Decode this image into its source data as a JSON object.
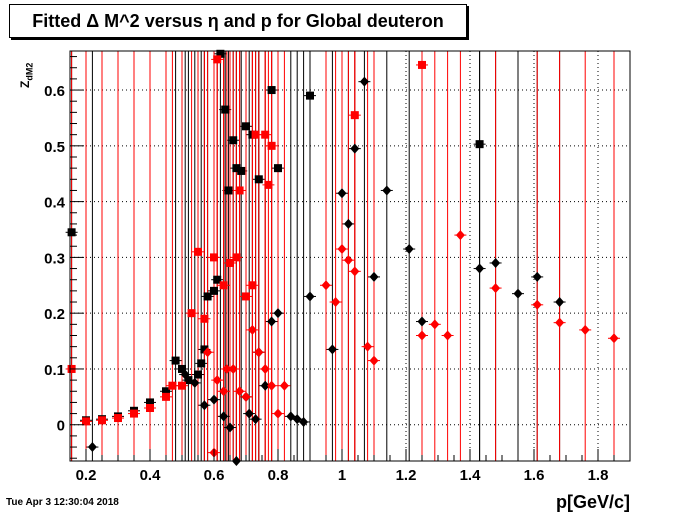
{
  "header": {
    "title": "Fitted Δ M^2 versus η and p for Global deuteron",
    "timestamp": "Tue Apr  3 12:30:04 2018"
  },
  "chart_data": {
    "type": "scatter",
    "title": "Fitted Δ M^2 versus η and p for Global deuteron",
    "xlabel": "p[GeV/c]",
    "ylabel_main": "Z",
    "ylabel_sub": "dM2",
    "xlim": [
      0.15,
      1.9
    ],
    "ylim": [
      -0.065,
      0.67
    ],
    "xticks": [
      0.2,
      0.4,
      0.6,
      0.8,
      1.0,
      1.2,
      1.4,
      1.6,
      1.8
    ],
    "xtick_labels": [
      "0.2",
      "0.4",
      "0.6",
      "0.8",
      "1",
      "1.2",
      "1.4",
      "1.6",
      "1.8"
    ],
    "yticks": [
      0,
      0.1,
      0.2,
      0.3,
      0.4,
      0.5,
      0.6
    ],
    "ytick_labels": [
      "0",
      "0.1",
      "0.2",
      "0.3",
      "0.4",
      "0.5",
      "0.6"
    ],
    "grid": true,
    "series": [
      {
        "color": "#000000",
        "marker": "square",
        "points": [
          [
            0.155,
            0.345
          ],
          [
            0.2,
            0.008
          ],
          [
            0.25,
            0.01
          ],
          [
            0.3,
            0.015
          ],
          [
            0.35,
            0.025
          ],
          [
            0.4,
            0.04
          ],
          [
            0.45,
            0.06
          ],
          [
            0.48,
            0.115
          ],
          [
            0.5,
            0.1
          ],
          [
            0.52,
            0.08
          ],
          [
            0.55,
            0.09
          ],
          [
            0.56,
            0.11
          ],
          [
            0.57,
            0.135
          ],
          [
            0.58,
            0.23
          ],
          [
            0.6,
            0.24
          ],
          [
            0.61,
            0.26
          ],
          [
            0.62,
            0.665
          ],
          [
            0.635,
            0.565
          ],
          [
            0.645,
            0.42
          ],
          [
            0.66,
            0.51
          ],
          [
            0.67,
            0.46
          ],
          [
            0.685,
            0.455
          ],
          [
            0.7,
            0.535
          ],
          [
            0.72,
            0.52
          ],
          [
            0.74,
            0.44
          ],
          [
            0.78,
            0.6
          ],
          [
            0.8,
            0.46
          ],
          [
            0.9,
            0.59
          ],
          [
            1.43,
            0.503
          ]
        ]
      },
      {
        "color": "#000000",
        "marker": "diamond",
        "points": [
          [
            0.22,
            -0.04
          ],
          [
            0.51,
            0.09
          ],
          [
            0.54,
            0.075
          ],
          [
            0.57,
            0.035
          ],
          [
            0.6,
            0.045
          ],
          [
            0.63,
            0.015
          ],
          [
            0.65,
            -0.005
          ],
          [
            0.67,
            -0.065
          ],
          [
            0.7,
            0.05
          ],
          [
            0.71,
            0.02
          ],
          [
            0.73,
            0.01
          ],
          [
            0.74,
            0.13
          ],
          [
            0.76,
            0.07
          ],
          [
            0.78,
            0.185
          ],
          [
            0.8,
            0.2
          ],
          [
            0.84,
            0.015
          ],
          [
            0.86,
            0.01
          ],
          [
            0.88,
            0.005
          ],
          [
            0.9,
            0.23
          ],
          [
            0.97,
            0.135
          ],
          [
            1.0,
            0.415
          ],
          [
            1.02,
            0.36
          ],
          [
            1.04,
            0.495
          ],
          [
            1.07,
            0.615
          ],
          [
            1.1,
            0.265
          ],
          [
            1.14,
            0.42
          ],
          [
            1.21,
            0.315
          ],
          [
            1.25,
            0.185
          ],
          [
            1.43,
            0.28
          ],
          [
            1.48,
            0.29
          ],
          [
            1.55,
            0.235
          ],
          [
            1.61,
            0.265
          ],
          [
            1.68,
            0.22
          ]
        ]
      },
      {
        "color": "#ff0000",
        "marker": "square",
        "points": [
          [
            0.155,
            0.1
          ],
          [
            0.2,
            0.006
          ],
          [
            0.25,
            0.008
          ],
          [
            0.3,
            0.012
          ],
          [
            0.35,
            0.02
          ],
          [
            0.4,
            0.03
          ],
          [
            0.45,
            0.05
          ],
          [
            0.47,
            0.07
          ],
          [
            0.5,
            0.07
          ],
          [
            0.53,
            0.2
          ],
          [
            0.55,
            0.31
          ],
          [
            0.57,
            0.19
          ],
          [
            0.6,
            0.3
          ],
          [
            0.61,
            0.655
          ],
          [
            0.63,
            0.25
          ],
          [
            0.65,
            0.29
          ],
          [
            0.67,
            0.3
          ],
          [
            0.68,
            0.42
          ],
          [
            0.7,
            0.23
          ],
          [
            0.72,
            0.25
          ],
          [
            0.73,
            0.52
          ],
          [
            0.76,
            0.52
          ],
          [
            0.77,
            0.43
          ],
          [
            0.78,
            0.5
          ],
          [
            1.04,
            0.555
          ],
          [
            1.25,
            0.645
          ]
        ]
      },
      {
        "color": "#ff0000",
        "marker": "diamond",
        "points": [
          [
            0.58,
            0.13
          ],
          [
            0.6,
            -0.05
          ],
          [
            0.61,
            0.08
          ],
          [
            0.63,
            0.06
          ],
          [
            0.64,
            0.1
          ],
          [
            0.66,
            0.1
          ],
          [
            0.68,
            0.06
          ],
          [
            0.7,
            0.05
          ],
          [
            0.72,
            0.17
          ],
          [
            0.74,
            0.13
          ],
          [
            0.76,
            0.1
          ],
          [
            0.78,
            0.07
          ],
          [
            0.8,
            0.02
          ],
          [
            0.82,
            0.07
          ],
          [
            0.95,
            0.25
          ],
          [
            0.98,
            0.22
          ],
          [
            1.0,
            0.315
          ],
          [
            1.02,
            0.295
          ],
          [
            1.04,
            0.275
          ],
          [
            1.08,
            0.14
          ],
          [
            1.1,
            0.115
          ],
          [
            1.25,
            0.16
          ],
          [
            1.29,
            0.18
          ],
          [
            1.33,
            0.16
          ],
          [
            1.37,
            0.34
          ],
          [
            1.48,
            0.245
          ],
          [
            1.61,
            0.215
          ],
          [
            1.68,
            0.183
          ],
          [
            1.76,
            0.17
          ],
          [
            1.85,
            0.155
          ]
        ]
      }
    ]
  }
}
